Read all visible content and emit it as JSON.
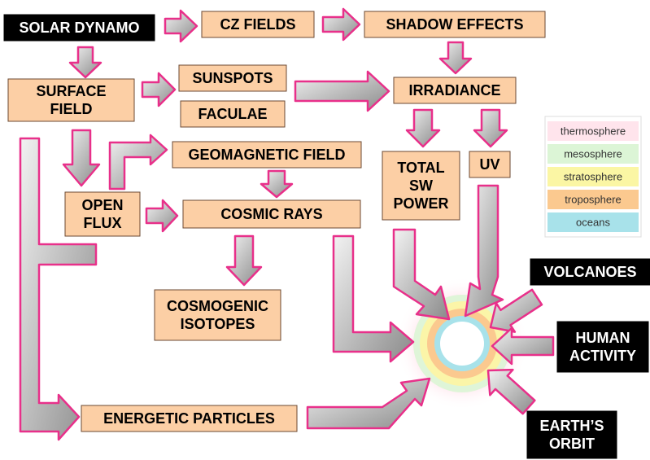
{
  "nodes": [
    {
      "label": [
        "SOLAR DYNAMO"
      ]
    },
    {
      "label": [
        "CZ FIELDS"
      ]
    },
    {
      "label": [
        "SHADOW EFFECTS"
      ]
    },
    {
      "label": [
        "SURFACE",
        "FIELD"
      ]
    },
    {
      "label": [
        "SUNSPOTS"
      ]
    },
    {
      "label": [
        "FACULAE"
      ]
    },
    {
      "label": [
        "IRRADIANCE"
      ]
    },
    {
      "label": [
        "GEOMAGNETIC FIELD"
      ]
    },
    {
      "label": [
        "TOTAL",
        "SW",
        "POWER"
      ]
    },
    {
      "label": [
        "UV"
      ]
    },
    {
      "label": [
        "OPEN",
        "FLUX"
      ]
    },
    {
      "label": [
        "COSMIC RAYS"
      ]
    },
    {
      "label": [
        "COSMOGENIC",
        "ISOTOPES"
      ]
    },
    {
      "label": [
        "ENERGETIC PARTICLES"
      ]
    },
    {
      "label": [
        "VOLCANOES"
      ]
    },
    {
      "label": [
        "HUMAN",
        "ACTIVITY"
      ]
    },
    {
      "label": [
        "EARTH’S",
        "ORBIT"
      ]
    }
  ],
  "legend": [
    "thermosphere",
    "mesosphere",
    "stratosphere",
    "troposphere",
    "oceans"
  ]
}
